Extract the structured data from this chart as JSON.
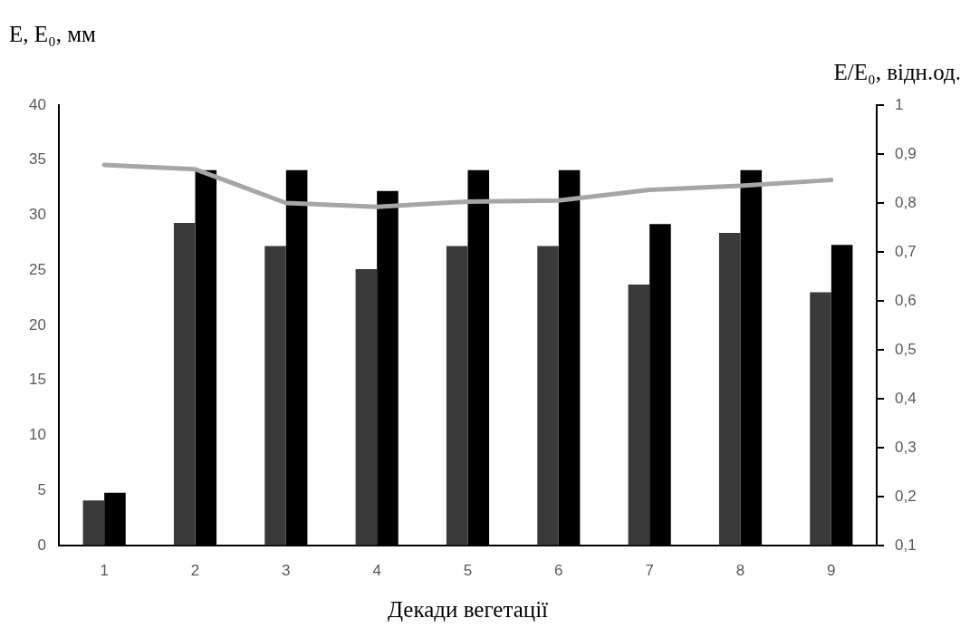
{
  "chart_data": {
    "type": "bar",
    "xlabel": "Декади вегетації",
    "ylabel": "E, E₀, мм",
    "y2label": "E/E₀, відн.од.",
    "categories": [
      "1",
      "2",
      "3",
      "4",
      "5",
      "6",
      "7",
      "8",
      "9"
    ],
    "series": [
      {
        "color": "#3a3a3a",
        "values": [
          4.1,
          29.3,
          27.2,
          25.1,
          27.2,
          27.2,
          23.7,
          28.4,
          23.0
        ]
      },
      {
        "color": "#000000",
        "values": [
          4.8,
          34.1,
          34.1,
          32.2,
          34.1,
          34.1,
          29.2,
          34.1,
          27.3
        ]
      },
      {
        "type": "line",
        "axis": "y2",
        "color": "#a6a6a6",
        "values": [
          0.878,
          0.869,
          0.8,
          0.792,
          0.803,
          0.805,
          0.827,
          0.835,
          0.847
        ]
      }
    ],
    "ylim": [
      0,
      40
    ],
    "yticks": [
      0,
      5,
      10,
      15,
      20,
      25,
      30,
      35,
      40
    ],
    "y2lim": [
      0.1,
      1
    ],
    "y2ticks": [
      {
        "value": 0.1,
        "label": "0,1"
      },
      {
        "value": 0.2,
        "label": "0,2"
      },
      {
        "value": 0.3,
        "label": "0,3"
      },
      {
        "value": 0.4,
        "label": "0,4"
      },
      {
        "value": 0.5,
        "label": "0,5"
      },
      {
        "value": 0.6,
        "label": "0,6"
      },
      {
        "value": 0.7,
        "label": "0,7"
      },
      {
        "value": 0.8,
        "label": "0,8"
      },
      {
        "value": 0.9,
        "label": "0,9"
      },
      1
    ]
  }
}
